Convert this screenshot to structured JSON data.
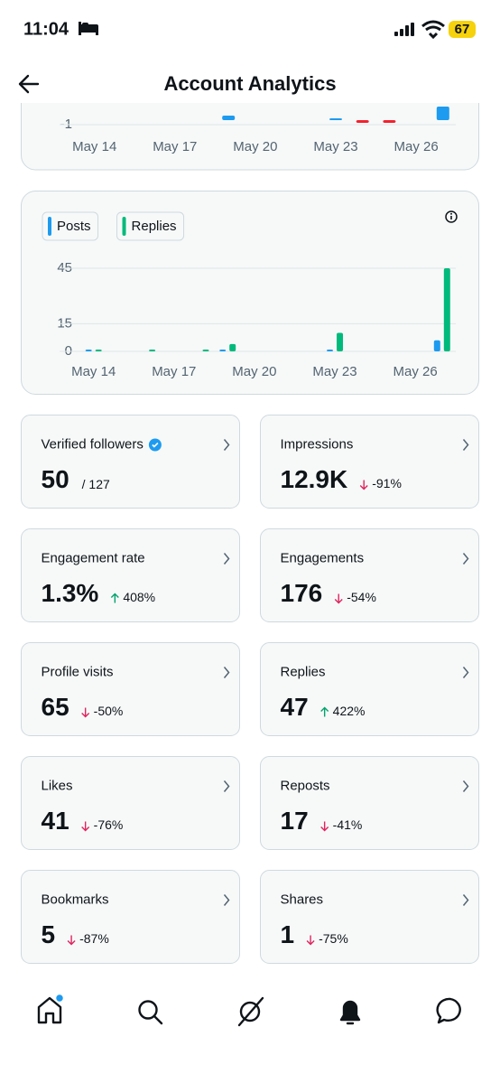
{
  "status_bar": {
    "time": "11:04",
    "battery": "67"
  },
  "header": {
    "title": "Account Analytics"
  },
  "follower_chart": {
    "type": "bar",
    "categories": [
      null,
      "May 14",
      null,
      null,
      "May 17",
      null,
      null,
      "May 20",
      null,
      null,
      "May 23",
      null,
      null,
      "May 26",
      null
    ],
    "series": [
      {
        "color": "#1d9bf0",
        "values": [
          null,
          null,
          null,
          null,
          null,
          null,
          1,
          null,
          null,
          null,
          0.4,
          null,
          null,
          null,
          3
        ]
      },
      {
        "color": "#f4212e",
        "values": [
          null,
          null,
          null,
          null,
          null,
          null,
          null,
          null,
          null,
          null,
          null,
          -0.6,
          -0.6,
          null,
          null
        ]
      }
    ],
    "ylim": [
      -2.6,
      3
    ],
    "yticks": [
      -1
    ],
    "grid": true
  },
  "activity_chart": {
    "type": "bar",
    "categories": [
      null,
      "May 14",
      null,
      null,
      "May 17",
      null,
      null,
      "May 20",
      null,
      null,
      "May 23",
      null,
      null,
      "May 26",
      null
    ],
    "series": [
      {
        "name": "Posts",
        "color": "#1d9bf0",
        "values": [
          null,
          1,
          null,
          null,
          null,
          null,
          1,
          null,
          null,
          null,
          1,
          null,
          null,
          null,
          6
        ]
      },
      {
        "name": "Replies",
        "color": "#00ba7c",
        "values": [
          null,
          1,
          null,
          1,
          null,
          1,
          4,
          null,
          null,
          null,
          10,
          null,
          null,
          null,
          45
        ]
      }
    ],
    "ylim": [
      0,
      45
    ],
    "yticks": [
      0,
      15,
      45
    ],
    "grid": true
  },
  "metrics": [
    {
      "label": "Verified followers",
      "value": "50",
      "total": "/ 127"
    },
    {
      "label": "Impressions",
      "value": "12.9K",
      "change": "-91%"
    },
    {
      "label": "Engagement rate",
      "value": "1.3%",
      "change": "408%"
    },
    {
      "label": "Engagements",
      "value": "176",
      "change": "-54%"
    },
    {
      "label": "Profile visits",
      "value": "65",
      "change": "-50%"
    },
    {
      "label": "Replies",
      "value": "47",
      "change": "422%"
    },
    {
      "label": "Likes",
      "value": "41",
      "change": "-76%"
    },
    {
      "label": "Reposts",
      "value": "17",
      "change": "-41%"
    },
    {
      "label": "Bookmarks",
      "value": "5",
      "change": "-87%"
    },
    {
      "label": "Shares",
      "value": "1",
      "change": "-75%"
    }
  ]
}
